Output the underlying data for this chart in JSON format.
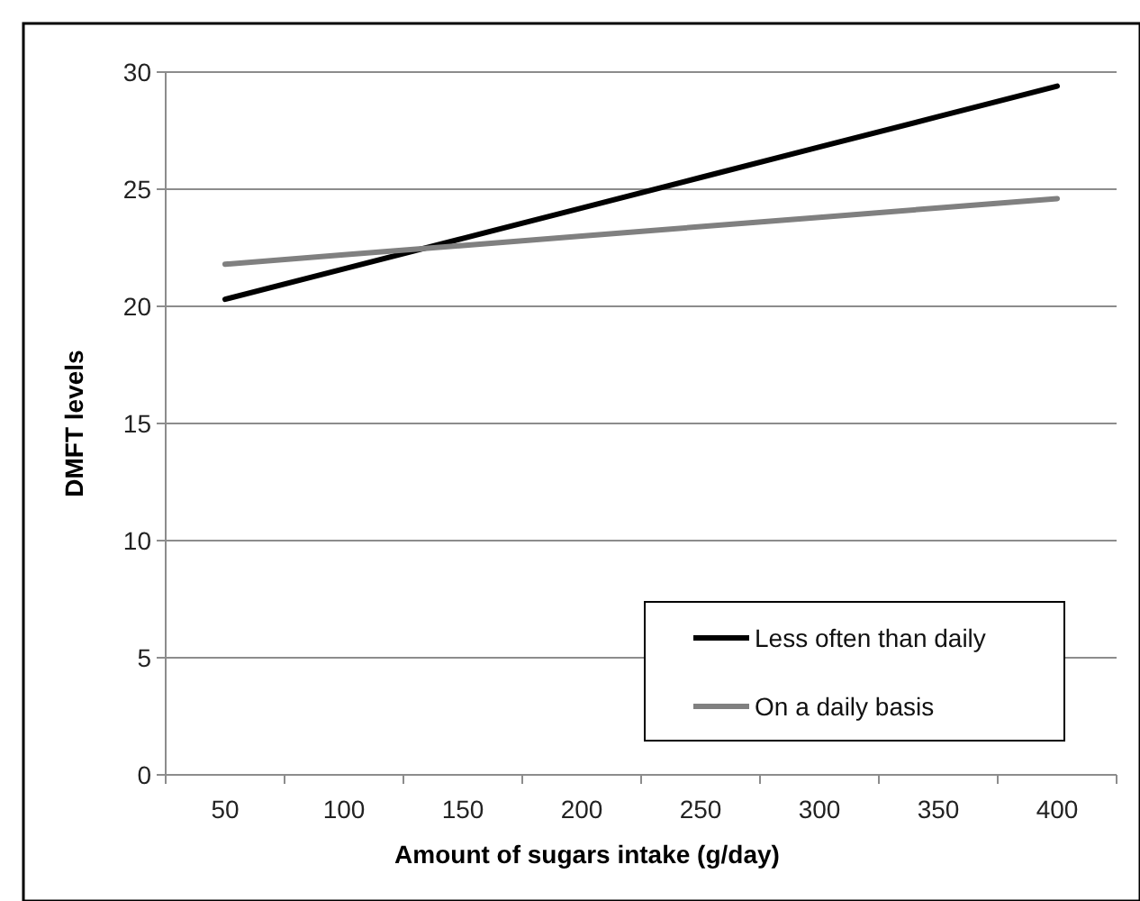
{
  "chart_data": {
    "type": "line",
    "xlabel": "Amount of sugars  intake (g/day)",
    "ylabel": "DMFT levels",
    "categories": [
      "50",
      "100",
      "150",
      "200",
      "250",
      "300",
      "350",
      "400"
    ],
    "series": [
      {
        "name": "Less often than daily",
        "color": "#000000",
        "values": [
          20.3,
          21.6,
          22.9,
          24.2,
          25.5,
          26.8,
          28.1,
          29.4
        ]
      },
      {
        "name": "On a daily basis",
        "color": "#808080",
        "values": [
          21.8,
          22.2,
          22.6,
          23.0,
          23.4,
          23.8,
          24.2,
          24.6
        ]
      }
    ],
    "ylim": [
      0,
      30
    ],
    "yticks": [
      0,
      5,
      10,
      15,
      20,
      25,
      30
    ],
    "grid": "y",
    "legend": "bottom right",
    "marker": "none",
    "line_style": "solid"
  }
}
